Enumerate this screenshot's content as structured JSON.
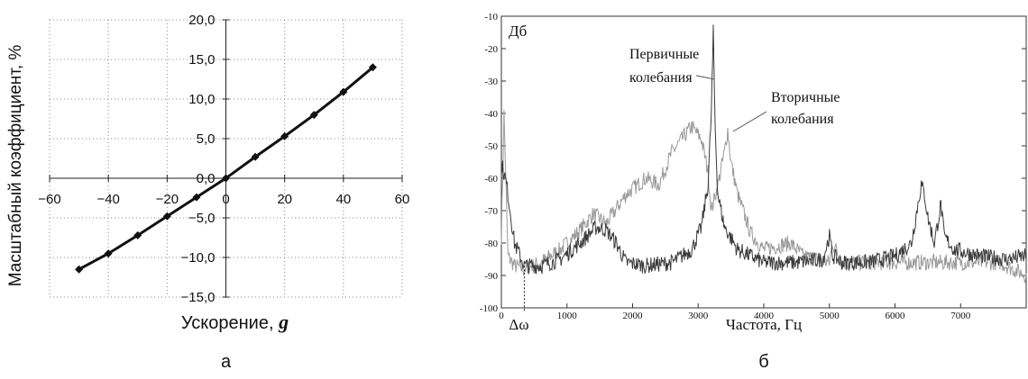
{
  "chart_data": [
    {
      "type": "line",
      "panel_label": "а",
      "xlabel": "Ускорение, ",
      "xlabel_symbol": "g",
      "ylabel": "Масштабный коэффициент, %",
      "xlim": [
        -60,
        60
      ],
      "ylim": [
        -15,
        20
      ],
      "x_ticks": [
        "−60",
        "−40",
        "−20",
        "0",
        "20",
        "40",
        "60"
      ],
      "y_ticks": [
        "−15,0",
        "−10,0",
        "−5,0",
        "0,0",
        "5,0",
        "10,0",
        "15,0",
        "20,0"
      ],
      "grid": "dotted",
      "series": [
        {
          "x": [
            -50,
            -40,
            -30,
            -20,
            -10,
            0,
            10,
            20,
            30,
            40,
            50
          ],
          "values": [
            -11.5,
            -9.5,
            -7.2,
            -4.8,
            -2.4,
            0.0,
            2.7,
            5.3,
            8.0,
            10.9,
            14.0
          ]
        }
      ]
    },
    {
      "type": "line",
      "panel_label": "б",
      "xlabel": "Частота, Гц",
      "ylabel": "Дб",
      "xlim": [
        0,
        8000
      ],
      "ylim": [
        -100,
        -10
      ],
      "x_ticks": [
        "0",
        "1000",
        "2000",
        "3000",
        "4000",
        "5000",
        "6000",
        "7000"
      ],
      "y_ticks": [
        "-10",
        "-20",
        "-30",
        "-40",
        "-50",
        "-60",
        "-70",
        "-80",
        "-90",
        "-100"
      ],
      "annotations": {
        "primary": [
          "Первичные",
          "колебания"
        ],
        "secondary": [
          "Вторичные",
          "колебания"
        ],
        "delta": "Δω",
        "delta_x": 350
      },
      "series": [
        {
          "color": "#3a3a3a",
          "x": [
            0,
            80,
            200,
            350,
            600,
            900,
            1200,
            1450,
            1600,
            1750,
            1900,
            2200,
            2600,
            2900,
            3050,
            3150,
            3200,
            3230,
            3260,
            3300,
            3400,
            3600,
            4000,
            4500,
            4900,
            5000,
            5050,
            5200,
            5600,
            6000,
            6250,
            6400,
            6450,
            6500,
            6600,
            6700,
            6750,
            6900,
            7300,
            7700,
            8000
          ],
          "values": [
            -55,
            -62,
            -80,
            -87,
            -87,
            -85,
            -80,
            -75,
            -76,
            -80,
            -86,
            -87,
            -86,
            -82,
            -75,
            -62,
            -40,
            -15,
            -45,
            -65,
            -75,
            -82,
            -86,
            -86,
            -85,
            -78,
            -84,
            -86,
            -86,
            -84,
            -80,
            -62,
            -65,
            -72,
            -80,
            -68,
            -78,
            -82,
            -84,
            -85,
            -84
          ]
        },
        {
          "color": "#9a9a9a",
          "x": [
            0,
            40,
            100,
            200,
            350,
            600,
            900,
            1200,
            1400,
            1600,
            1900,
            2200,
            2400,
            2600,
            2900,
            3050,
            3150,
            3200,
            3300,
            3400,
            3450,
            3500,
            3600,
            3800,
            4000,
            4400,
            4600,
            5000,
            5050,
            5200,
            5600,
            6000,
            6400,
            6800,
            7200,
            7600,
            8000
          ],
          "values": [
            -78,
            -40,
            -84,
            -87,
            -88,
            -86,
            -82,
            -76,
            -71,
            -74,
            -65,
            -60,
            -62,
            -52,
            -44,
            -48,
            -58,
            -70,
            -62,
            -52,
            -45,
            -55,
            -65,
            -77,
            -82,
            -80,
            -84,
            -86,
            -80,
            -86,
            -86,
            -86,
            -86,
            -86,
            -86,
            -86,
            -90
          ]
        }
      ]
    }
  ]
}
